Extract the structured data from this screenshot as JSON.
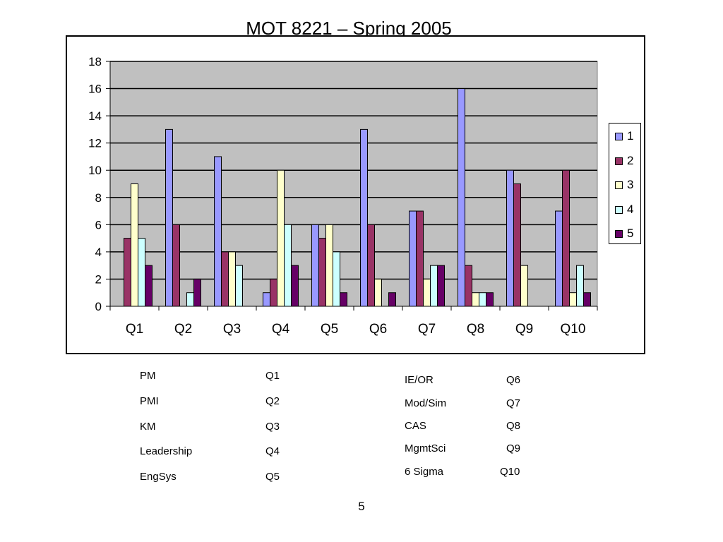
{
  "slide": {
    "title": "MOT 8221 – Spring 2005",
    "page_number": "5"
  },
  "chart_data": {
    "type": "bar",
    "title": "",
    "xlabel": "",
    "ylabel": "",
    "categories": [
      "Q1",
      "Q2",
      "Q3",
      "Q4",
      "Q5",
      "Q6",
      "Q7",
      "Q8",
      "Q9",
      "Q10"
    ],
    "ylim": [
      0,
      18
    ],
    "yticks": [
      0,
      2,
      4,
      6,
      8,
      10,
      12,
      14,
      16,
      18
    ],
    "grid": true,
    "plot_background": "#c0c0c0",
    "legend_position": "right",
    "series": [
      {
        "name": "1",
        "color": "#9999ff",
        "values": [
          0,
          13,
          11,
          1,
          6,
          13,
          7,
          16,
          10,
          7
        ]
      },
      {
        "name": "2",
        "color": "#993366",
        "values": [
          5,
          6,
          4,
          2,
          5,
          6,
          7,
          3,
          9,
          10
        ]
      },
      {
        "name": "3",
        "color": "#ffffcc",
        "values": [
          9,
          0,
          4,
          10,
          6,
          2,
          2,
          1,
          3,
          1
        ]
      },
      {
        "name": "4",
        "color": "#ccffff",
        "values": [
          5,
          1,
          3,
          6,
          4,
          0,
          3,
          1,
          0,
          3
        ]
      },
      {
        "name": "5",
        "color": "#660066",
        "values": [
          3,
          2,
          0,
          3,
          1,
          1,
          3,
          1,
          0,
          1
        ]
      }
    ]
  },
  "key": {
    "left": [
      {
        "name": "PM",
        "question": "Q1"
      },
      {
        "name": "PMI",
        "question": "Q2"
      },
      {
        "name": "KM",
        "question": "Q3"
      },
      {
        "name": "Leadership",
        "question": "Q4"
      },
      {
        "name": "EngSys",
        "question": "Q5"
      }
    ],
    "right": [
      {
        "name": "IE/OR",
        "question": "Q6"
      },
      {
        "name": "Mod/Sim",
        "question": "Q7"
      },
      {
        "name": "CAS",
        "question": "Q8"
      },
      {
        "name": "MgmtSci",
        "question": "Q9"
      },
      {
        "name": "6 Sigma",
        "question": "Q10"
      }
    ]
  }
}
